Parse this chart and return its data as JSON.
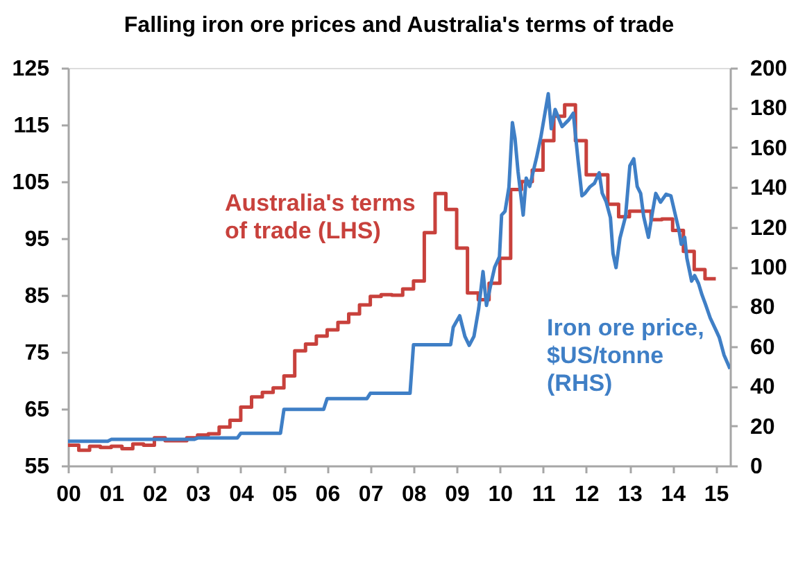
{
  "chart_data": {
    "type": "line",
    "title": "Falling iron ore prices and Australia's terms of trade",
    "xlim": [
      2000,
      2015.33
    ],
    "xticks": [
      {
        "value": 2000,
        "label": "00"
      },
      {
        "value": 2001,
        "label": "01"
      },
      {
        "value": 2002,
        "label": "02"
      },
      {
        "value": 2003,
        "label": "03"
      },
      {
        "value": 2004,
        "label": "04"
      },
      {
        "value": 2005,
        "label": "05"
      },
      {
        "value": 2006,
        "label": "06"
      },
      {
        "value": 2007,
        "label": "07"
      },
      {
        "value": 2008,
        "label": "08"
      },
      {
        "value": 2009,
        "label": "09"
      },
      {
        "value": 2010,
        "label": "10"
      },
      {
        "value": 2011,
        "label": "11"
      },
      {
        "value": 2012,
        "label": "12"
      },
      {
        "value": 2013,
        "label": "13"
      },
      {
        "value": 2014,
        "label": "14"
      },
      {
        "value": 2015,
        "label": "15"
      }
    ],
    "ylim": [
      55,
      125
    ],
    "yticks": [
      55,
      65,
      75,
      85,
      95,
      105,
      115,
      125
    ],
    "y2lim": [
      0,
      200
    ],
    "y2ticks": [
      0,
      20,
      40,
      60,
      80,
      100,
      120,
      140,
      160,
      180,
      200
    ],
    "grid": false,
    "series": [
      {
        "name": "Australia's terms\nof trade (LHS)",
        "type": "step",
        "color": "#c8413c",
        "x": [
          2000.0,
          2000.25,
          2000.5,
          2000.75,
          2001.0,
          2001.25,
          2001.5,
          2001.75,
          2002.0,
          2002.25,
          2002.5,
          2002.75,
          2003.0,
          2003.25,
          2003.5,
          2003.75,
          2004.0,
          2004.25,
          2004.5,
          2004.75,
          2005.0,
          2005.25,
          2005.5,
          2005.75,
          2006.0,
          2006.25,
          2006.5,
          2006.75,
          2007.0,
          2007.25,
          2007.5,
          2007.75,
          2008.0,
          2008.25,
          2008.5,
          2008.75,
          2009.0,
          2009.25,
          2009.5,
          2009.75,
          2010.0,
          2010.25,
          2010.5,
          2010.75,
          2011.0,
          2011.25,
          2011.5,
          2011.75,
          2012.0,
          2012.25,
          2012.5,
          2012.75,
          2013.0,
          2013.25,
          2013.5,
          2013.75,
          2014.0,
          2014.25,
          2014.5,
          2014.75,
          2015.0
        ],
        "values": [
          58.6,
          57.7,
          58.4,
          58.2,
          58.4,
          58.0,
          58.8,
          58.6,
          59.9,
          59.4,
          59.4,
          59.9,
          60.4,
          60.6,
          61.8,
          63.0,
          65.3,
          67.1,
          67.9,
          68.7,
          70.8,
          75.2,
          76.4,
          77.8,
          78.9,
          80.2,
          81.7,
          83.3,
          84.8,
          85.1,
          85.0,
          86.1,
          87.5,
          96.0,
          102.9,
          100.1,
          93.3,
          85.4,
          84.2,
          87.1,
          91.5,
          103.6,
          105.0,
          107.0,
          112.2,
          116.5,
          118.5,
          112.2,
          106.2,
          106.2,
          101.0,
          98.8,
          99.8,
          99.8,
          98.3,
          98.4,
          96.4,
          92.7,
          89.5,
          87.9,
          87.9
        ]
      },
      {
        "name": "Iron ore price,\n$US/tonne\n(RHS)",
        "type": "line",
        "axis": "y2",
        "color": "#3f7fc6",
        "x": [
          2000.0,
          2000.92,
          2001.0,
          2002.92,
          2003.0,
          2003.92,
          2004.0,
          2004.92,
          2005.0,
          2005.92,
          2006.0,
          2006.92,
          2007.0,
          2007.92,
          2008.0,
          2008.86,
          2008.92,
          2009.07,
          2009.19,
          2009.29,
          2009.4,
          2009.51,
          2009.61,
          2009.69,
          2009.8,
          2009.88,
          2009.99,
          2010.04,
          2010.12,
          2010.21,
          2010.29,
          2010.35,
          2010.42,
          2010.54,
          2010.61,
          2010.69,
          2010.85,
          2010.95,
          2011.12,
          2011.19,
          2011.28,
          2011.44,
          2011.6,
          2011.7,
          2011.81,
          2011.9,
          2011.97,
          2012.08,
          2012.19,
          2012.3,
          2012.37,
          2012.46,
          2012.56,
          2012.62,
          2012.69,
          2012.78,
          2012.91,
          2013.01,
          2013.1,
          2013.18,
          2013.26,
          2013.33,
          2013.44,
          2013.53,
          2013.61,
          2013.72,
          2013.85,
          2013.96,
          2014.06,
          2014.15,
          2014.2,
          2014.28,
          2014.33,
          2014.44,
          2014.51,
          2014.6,
          2014.68,
          2014.76,
          2014.87,
          2015.01,
          2015.08,
          2015.19,
          2015.33
        ],
        "values": [
          12.3,
          12.3,
          13.2,
          13.2,
          13.9,
          13.9,
          16.3,
          16.3,
          28.3,
          28.3,
          33.7,
          33.7,
          36.4,
          36.4,
          60.8,
          60.8,
          69.6,
          75.4,
          65.0,
          60.5,
          65,
          79,
          97.6,
          80.6,
          92.2,
          99.8,
          105,
          126,
          127.9,
          140,
          172.5,
          164.7,
          148,
          126,
          144.6,
          140.4,
          155,
          165.3,
          187,
          169.4,
          179.1,
          170.5,
          174,
          177.2,
          153.7,
          135.7,
          136.9,
          140.1,
          142,
          147.3,
          137,
          132.8,
          124.7,
          106.7,
          99.6,
          114.3,
          125.3,
          150.8,
          154.3,
          140.4,
          136.9,
          125.3,
          114.8,
          127,
          136.9,
          132.5,
          136.5,
          135.7,
          126.4,
          118,
          111.3,
          114.8,
          104.4,
          92.8,
          95.6,
          91.6,
          85.9,
          81.2,
          74.3,
          67.8,
          64.5,
          55.7,
          48.7
        ]
      }
    ]
  }
}
